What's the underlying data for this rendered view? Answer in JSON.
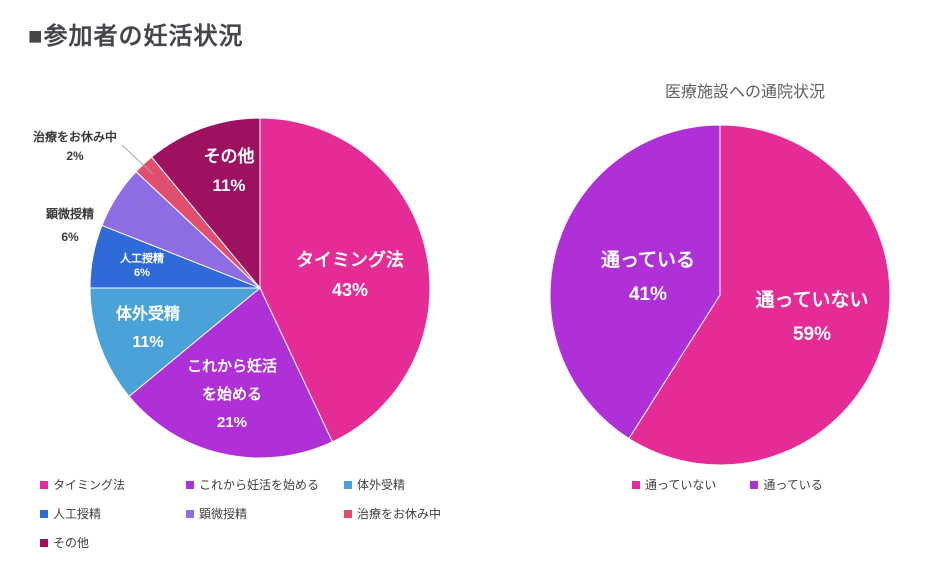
{
  "page": {
    "title": "■参加者の妊活状況"
  },
  "chart_data": [
    {
      "type": "pie",
      "title": "",
      "categories": [
        "タイミング法",
        "これから妊活を始める",
        "体外受精",
        "人工授精",
        "顕微授精",
        "治療をお休み中",
        "その他"
      ],
      "values": [
        43,
        21,
        11,
        6,
        6,
        2,
        11
      ],
      "unit": "%",
      "colors": [
        "#e52b96",
        "#b030d8",
        "#4aa2d9",
        "#2e6bd8",
        "#8e6ce4",
        "#e04f6e",
        "#9e1060"
      ],
      "legend_position": "bottom",
      "label_style": "category-and-percent-inside-or-outside"
    },
    {
      "type": "pie",
      "title": "医療施設への通院状況",
      "categories": [
        "通っていない",
        "通っている"
      ],
      "values": [
        59,
        41
      ],
      "unit": "%",
      "colors": [
        "#e52b96",
        "#b030d8"
      ],
      "legend_position": "bottom",
      "label_style": "category-and-percent-inside"
    }
  ]
}
